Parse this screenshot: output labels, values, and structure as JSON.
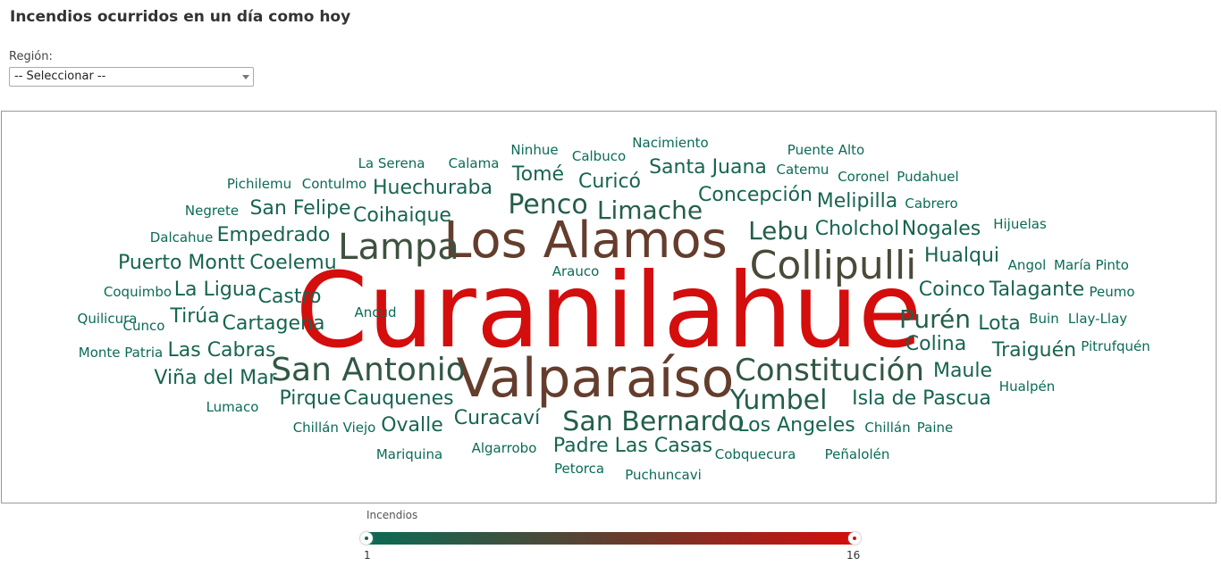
{
  "page": {
    "title": "Incendios ocurridos en un día como hoy"
  },
  "filter": {
    "label": "Región:",
    "selected": "-- Seleccionar --"
  },
  "legend": {
    "title": "Incendios",
    "min_label": "1",
    "max_label": "16"
  },
  "colors": {
    "low": "#0a6b56",
    "mid": "#6b3a2a",
    "high": "#d40d0d"
  },
  "icons": {
    "select_arrow": "chevron-down-icon"
  },
  "chart_data": {
    "type": "wordcloud",
    "value_range": [
      1,
      16
    ],
    "words": [
      {
        "text": "Curanilahue",
        "value": 16
      },
      {
        "text": "Los Alamos",
        "value": 8
      },
      {
        "text": "Valparaíso",
        "value": 8
      },
      {
        "text": "Collipulli",
        "value": 6
      },
      {
        "text": "Lampa",
        "value": 5
      },
      {
        "text": "San Antonio",
        "value": 4
      },
      {
        "text": "Constitución",
        "value": 4
      },
      {
        "text": "San Bernardo",
        "value": 3
      },
      {
        "text": "Yumbel",
        "value": 3
      },
      {
        "text": "Penco",
        "value": 3
      },
      {
        "text": "Limache",
        "value": 3
      },
      {
        "text": "Lebu",
        "value": 3
      },
      {
        "text": "Purén",
        "value": 3
      },
      {
        "text": "Huechuraba",
        "value": 2
      },
      {
        "text": "Tomé",
        "value": 2
      },
      {
        "text": "Curicó",
        "value": 2
      },
      {
        "text": "Santa Juana",
        "value": 2
      },
      {
        "text": "Concepción",
        "value": 2
      },
      {
        "text": "Melipilla",
        "value": 2
      },
      {
        "text": "Cholchol",
        "value": 2
      },
      {
        "text": "Nogales",
        "value": 2
      },
      {
        "text": "Hualqui",
        "value": 2
      },
      {
        "text": "Coinco",
        "value": 2
      },
      {
        "text": "Talagante",
        "value": 2
      },
      {
        "text": "Lota",
        "value": 2
      },
      {
        "text": "Colina",
        "value": 2
      },
      {
        "text": "Traiguén",
        "value": 2
      },
      {
        "text": "Maule",
        "value": 2
      },
      {
        "text": "Isla de Pascua",
        "value": 2
      },
      {
        "text": "Los Angeles",
        "value": 2
      },
      {
        "text": "Padre Las Casas",
        "value": 2
      },
      {
        "text": "Curacaví",
        "value": 2
      },
      {
        "text": "Ovalle",
        "value": 2
      },
      {
        "text": "Cauquenes",
        "value": 2
      },
      {
        "text": "Pirque",
        "value": 2
      },
      {
        "text": "Viña del Mar",
        "value": 2
      },
      {
        "text": "Las Cabras",
        "value": 2
      },
      {
        "text": "Cartagena",
        "value": 2
      },
      {
        "text": "Tirúa",
        "value": 2
      },
      {
        "text": "Castro",
        "value": 2
      },
      {
        "text": "La Ligua",
        "value": 2
      },
      {
        "text": "Coelemu",
        "value": 2
      },
      {
        "text": "Puerto Montt",
        "value": 2
      },
      {
        "text": "Empedrado",
        "value": 2
      },
      {
        "text": "San Felipe",
        "value": 2
      },
      {
        "text": "Coihaique",
        "value": 2
      },
      {
        "text": "Nacimiento",
        "value": 1
      },
      {
        "text": "Ninhue",
        "value": 1
      },
      {
        "text": "Calbuco",
        "value": 1
      },
      {
        "text": "La Serena",
        "value": 1
      },
      {
        "text": "Calama",
        "value": 1
      },
      {
        "text": "Puente Alto",
        "value": 1
      },
      {
        "text": "Catemu",
        "value": 1
      },
      {
        "text": "Pichilemu",
        "value": 1
      },
      {
        "text": "Contulmo",
        "value": 1
      },
      {
        "text": "Coronel",
        "value": 1
      },
      {
        "text": "Pudahuel",
        "value": 1
      },
      {
        "text": "Cabrero",
        "value": 1
      },
      {
        "text": "Negrete",
        "value": 1
      },
      {
        "text": "Hijuelas",
        "value": 1
      },
      {
        "text": "Dalcahue",
        "value": 1
      },
      {
        "text": "Arauco",
        "value": 1
      },
      {
        "text": "Angol",
        "value": 1
      },
      {
        "text": "María Pinto",
        "value": 1
      },
      {
        "text": "Coquimbo",
        "value": 1
      },
      {
        "text": "Peumo",
        "value": 1
      },
      {
        "text": "Ancud",
        "value": 1
      },
      {
        "text": "Quilicura",
        "value": 1
      },
      {
        "text": "Cunco",
        "value": 1
      },
      {
        "text": "Buin",
        "value": 1
      },
      {
        "text": "Llay-Llay",
        "value": 1
      },
      {
        "text": "Monte Patria",
        "value": 1
      },
      {
        "text": "Pitrufquén",
        "value": 1
      },
      {
        "text": "Hualpén",
        "value": 1
      },
      {
        "text": "Lumaco",
        "value": 1
      },
      {
        "text": "Chillán Viejo",
        "value": 1
      },
      {
        "text": "Chillán",
        "value": 1
      },
      {
        "text": "Paine",
        "value": 1
      },
      {
        "text": "Algarrobo",
        "value": 1
      },
      {
        "text": "Mariquina",
        "value": 1
      },
      {
        "text": "Cobquecura",
        "value": 1
      },
      {
        "text": "Peñalolén",
        "value": 1
      },
      {
        "text": "Petorca",
        "value": 1
      },
      {
        "text": "Puchuncavi",
        "value": 1
      }
    ]
  }
}
